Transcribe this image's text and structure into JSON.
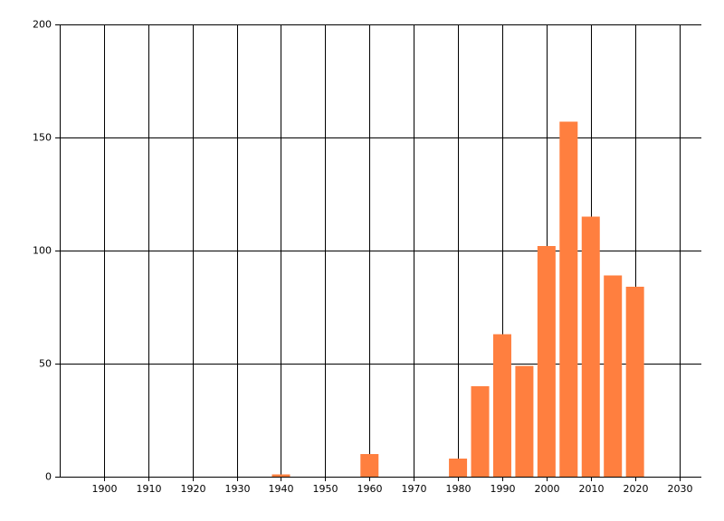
{
  "chart_data": {
    "type": "bar",
    "x": [
      1940,
      1960,
      1980,
      1985,
      1990,
      1995,
      2000,
      2005,
      2010,
      2015,
      2020
    ],
    "values": [
      1,
      10,
      8,
      40,
      63,
      49,
      102,
      157,
      115,
      89,
      84
    ],
    "color": "#ff7f3f",
    "xlim": [
      1890,
      2035
    ],
    "xticks": [
      1900,
      1910,
      1920,
      1930,
      1940,
      1950,
      1960,
      1970,
      1980,
      1990,
      2000,
      2010,
      2020,
      2030
    ],
    "ylim": [
      0,
      200
    ],
    "yticks": [
      0,
      50,
      100,
      150,
      200
    ],
    "grid": true
  }
}
